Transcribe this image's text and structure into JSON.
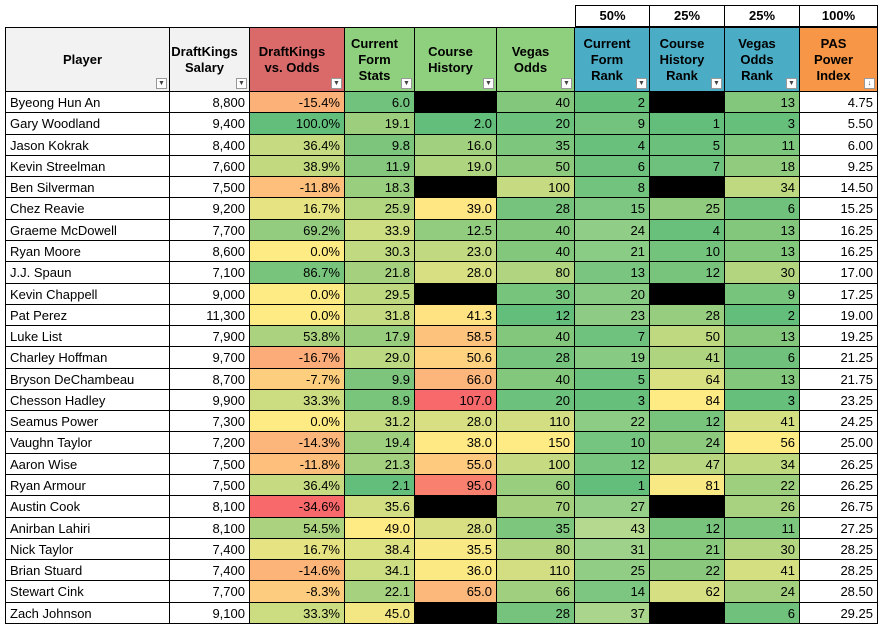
{
  "weights": [
    null,
    null,
    null,
    null,
    null,
    null,
    "50%",
    "25%",
    "25%",
    "100%"
  ],
  "columns": [
    {
      "label": "Player",
      "color": "#f2f2f2",
      "align": "left"
    },
    {
      "label": "DraftKings\nSalary",
      "color": "#f2f2f2",
      "align": "right"
    },
    {
      "label": "DraftKings\nvs. Odds",
      "color": "#da6a6a",
      "align": "right",
      "scale": [
        "#f8696b",
        "#ffeb84",
        "#63be7b"
      ]
    },
    {
      "label": "Current\nForm\nStats",
      "color": "#8fd07e",
      "align": "right",
      "scale": [
        "#63be7b",
        "#ffeb84"
      ]
    },
    {
      "label": "Course\nHistory",
      "color": "#8fd07e",
      "align": "right",
      "scale": [
        "#63be7b",
        "#ffeb84",
        "#f8696b"
      ]
    },
    {
      "label": "Vegas\nOdds",
      "color": "#8fd07e",
      "align": "right",
      "scale": [
        "#63be7b",
        "#ffeb84"
      ]
    },
    {
      "label": "Current\nForm\nRank",
      "color": "#4bacc6",
      "align": "right",
      "scale": [
        "#63be7b",
        "#b5d98f"
      ]
    },
    {
      "label": "Course\nHistory\nRank",
      "color": "#4bacc6",
      "align": "right",
      "scale": [
        "#63be7b",
        "#ffeb84"
      ]
    },
    {
      "label": "Vegas\nOdds\nRank",
      "color": "#4bacc6",
      "align": "right",
      "scale": [
        "#63be7b",
        "#ffeb84"
      ]
    },
    {
      "label": "PAS\nPower\nIndex",
      "color": "#f79646",
      "align": "right"
    }
  ],
  "rows": [
    [
      "Byeong Hun An",
      "8,800",
      "-15.4%",
      "6.0",
      null,
      "40",
      "2",
      null,
      "13",
      "4.75"
    ],
    [
      "Gary Woodland",
      "9,400",
      "100.0%",
      "19.1",
      "2.0",
      "20",
      "9",
      "1",
      "3",
      "5.50"
    ],
    [
      "Jason Kokrak",
      "8,400",
      "36.4%",
      "9.8",
      "16.0",
      "35",
      "4",
      "5",
      "11",
      "6.00"
    ],
    [
      "Kevin Streelman",
      "7,600",
      "38.9%",
      "11.9",
      "19.0",
      "50",
      "6",
      "7",
      "18",
      "9.25"
    ],
    [
      "Ben Silverman",
      "7,500",
      "-11.8%",
      "18.3",
      null,
      "100",
      "8",
      null,
      "34",
      "14.50"
    ],
    [
      "Chez Reavie",
      "9,200",
      "16.7%",
      "25.9",
      "39.0",
      "28",
      "15",
      "25",
      "6",
      "15.25"
    ],
    [
      "Graeme McDowell",
      "7,700",
      "69.2%",
      "33.9",
      "12.5",
      "40",
      "24",
      "4",
      "13",
      "16.25"
    ],
    [
      "Ryan Moore",
      "8,600",
      "0.0%",
      "30.3",
      "23.0",
      "40",
      "21",
      "10",
      "13",
      "16.25"
    ],
    [
      "J.J. Spaun",
      "7,100",
      "86.7%",
      "21.8",
      "28.0",
      "80",
      "13",
      "12",
      "30",
      "17.00"
    ],
    [
      "Kevin Chappell",
      "9,000",
      "0.0%",
      "29.5",
      null,
      "30",
      "20",
      null,
      "9",
      "17.25"
    ],
    [
      "Pat Perez",
      "11,300",
      "0.0%",
      "31.8",
      "41.3",
      "12",
      "23",
      "28",
      "2",
      "19.00"
    ],
    [
      "Luke List",
      "7,900",
      "53.8%",
      "17.9",
      "58.5",
      "40",
      "7",
      "50",
      "13",
      "19.25"
    ],
    [
      "Charley Hoffman",
      "9,700",
      "-16.7%",
      "29.0",
      "50.6",
      "28",
      "19",
      "41",
      "6",
      "21.25"
    ],
    [
      "Bryson DeChambeau",
      "8,700",
      "-7.7%",
      "9.9",
      "66.0",
      "40",
      "5",
      "64",
      "13",
      "21.75"
    ],
    [
      "Chesson Hadley",
      "9,900",
      "33.3%",
      "8.9",
      "107.0",
      "20",
      "3",
      "84",
      "3",
      "23.25"
    ],
    [
      "Seamus Power",
      "7,300",
      "0.0%",
      "31.2",
      "28.0",
      "110",
      "22",
      "12",
      "41",
      "24.25"
    ],
    [
      "Vaughn Taylor",
      "7,200",
      "-14.3%",
      "19.4",
      "38.0",
      "150",
      "10",
      "24",
      "56",
      "25.00"
    ],
    [
      "Aaron Wise",
      "7,500",
      "-11.8%",
      "21.3",
      "55.0",
      "100",
      "12",
      "47",
      "34",
      "26.25"
    ],
    [
      "Ryan Armour",
      "7,500",
      "36.4%",
      "2.1",
      "95.0",
      "60",
      "1",
      "81",
      "22",
      "26.25"
    ],
    [
      "Austin Cook",
      "8,100",
      "-34.6%",
      "35.6",
      null,
      "70",
      "27",
      null,
      "26",
      "26.75"
    ],
    [
      "Anirban Lahiri",
      "8,100",
      "54.5%",
      "49.0",
      "28.0",
      "35",
      "43",
      "12",
      "11",
      "27.25"
    ],
    [
      "Nick Taylor",
      "7,400",
      "16.7%",
      "38.4",
      "35.5",
      "80",
      "31",
      "21",
      "30",
      "28.25"
    ],
    [
      "Brian Stuard",
      "7,400",
      "-14.6%",
      "34.1",
      "36.0",
      "110",
      "25",
      "22",
      "41",
      "28.25"
    ],
    [
      "Stewart Cink",
      "7,700",
      "-8.3%",
      "22.1",
      "65.0",
      "66",
      "14",
      "62",
      "24",
      "28.50"
    ],
    [
      "Zach Johnson",
      "9,100",
      "33.3%",
      "45.0",
      null,
      "28",
      "37",
      null,
      "6",
      "29.25"
    ]
  ]
}
